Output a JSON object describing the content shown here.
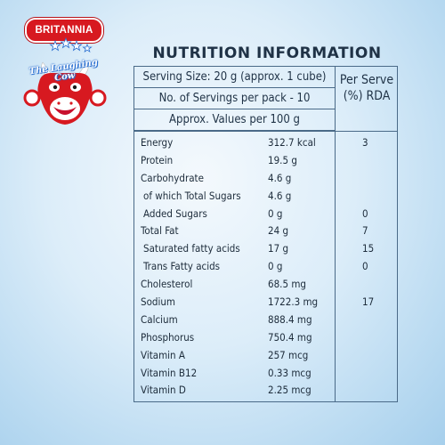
{
  "brand": {
    "name": "BRITANNIA",
    "tagline": "The Laughing Cow",
    "colors": {
      "red": "#d71920",
      "blue": "#2a6fd0"
    }
  },
  "nutrition": {
    "title": "NUTRITION INFORMATION",
    "serving_size": "Serving Size: 20 g (approx. 1 cube)",
    "servings_per_pack": "No. of Servings per pack - 10",
    "values_basis": "Approx. Values per 100 g",
    "per_serve_header": "Per Serve (%) RDA",
    "rows": [
      {
        "name": "Energy",
        "value": "312.7 kcal",
        "rda": "3"
      },
      {
        "name": "Protein",
        "value": "19.5 g",
        "rda": ""
      },
      {
        "name": "Carbohydrate",
        "value": "4.6 g",
        "rda": ""
      },
      {
        "name": "of which Total Sugars",
        "value": "4.6 g",
        "rda": "",
        "indent": true
      },
      {
        "name": "Added Sugars",
        "value": "0 g",
        "rda": "0",
        "indent": true
      },
      {
        "name": "Total Fat",
        "value": "24 g",
        "rda": "7"
      },
      {
        "name": "Saturated fatty acids",
        "value": "17 g",
        "rda": "15",
        "indent": true
      },
      {
        "name": "Trans Fatty acids",
        "value": "0 g",
        "rda": "0",
        "indent": true
      },
      {
        "name": "Cholesterol",
        "value": "68.5 mg",
        "rda": ""
      },
      {
        "name": "Sodium",
        "value": "1722.3 mg",
        "rda": "17"
      },
      {
        "name": "Calcium",
        "value": "888.4 mg",
        "rda": ""
      },
      {
        "name": "Phosphorus",
        "value": "750.4 mg",
        "rda": ""
      },
      {
        "name": "Vitamin A",
        "value": "257 mcg",
        "rda": ""
      },
      {
        "name": "Vitamin B12",
        "value": "0.33 mcg",
        "rda": ""
      },
      {
        "name": "Vitamin D",
        "value": "2.25 mcg",
        "rda": ""
      }
    ]
  }
}
